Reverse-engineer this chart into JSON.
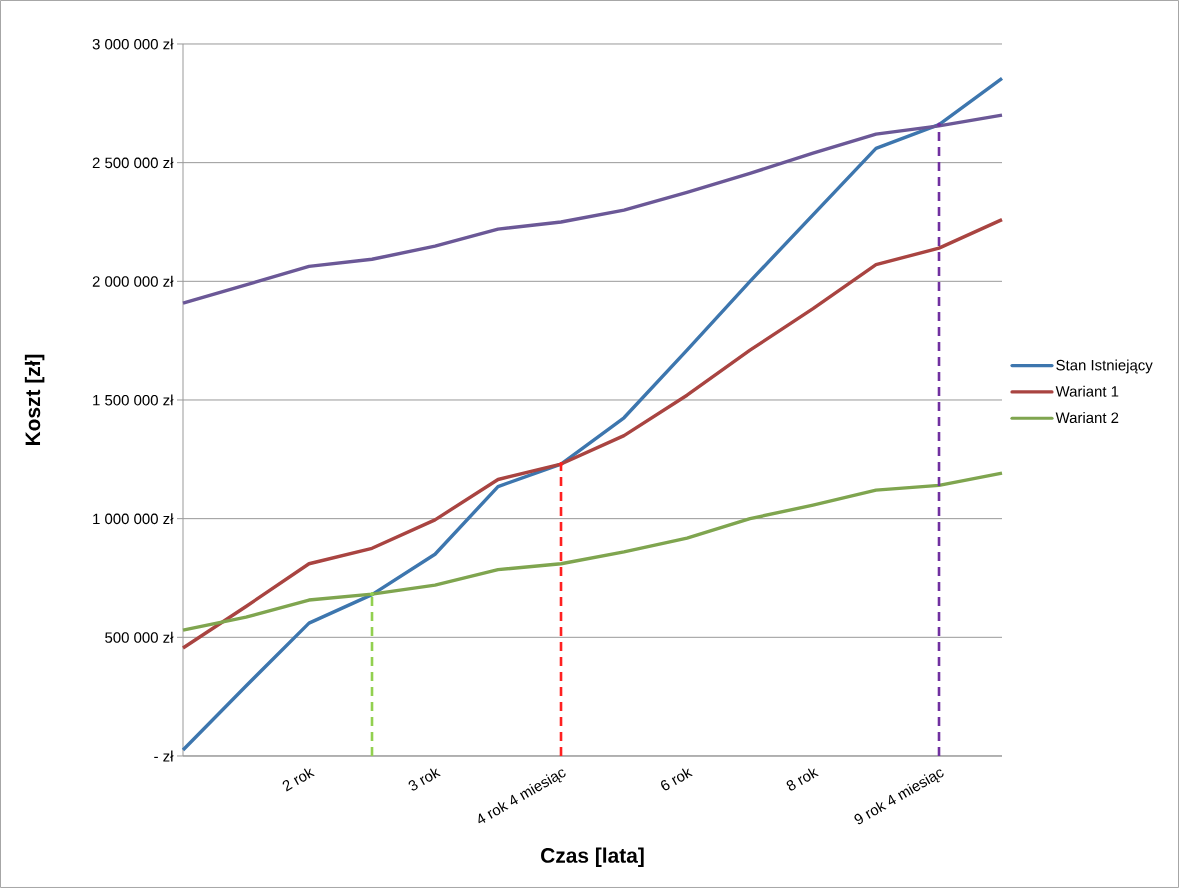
{
  "chart_data": {
    "type": "line",
    "xlabel": "Czas [lata]",
    "ylabel": "Koszt [zł]",
    "categories": [
      null,
      null,
      "2 rok",
      null,
      "3 rok",
      null,
      "4 rok 4 miesiąc",
      null,
      "6 rok",
      null,
      "8 rok",
      null,
      "9 rok 4 miesiąc",
      null
    ],
    "ylim": [
      0,
      3000000
    ],
    "yticks": [
      {
        "value": 0,
        "label": "- zł"
      },
      {
        "value": 500000,
        "label": "500 000 zł"
      },
      {
        "value": 1000000,
        "label": "1 000 000 zł"
      },
      {
        "value": 1500000,
        "label": "1 500 000 zł"
      },
      {
        "value": 2000000,
        "label": "2 000 000 zł"
      },
      {
        "value": 2500000,
        "label": "2 500 000 zł"
      },
      {
        "value": 3000000,
        "label": "3 000 000 zł"
      }
    ],
    "grid": "y",
    "legend": "right",
    "line_style": "solid",
    "marker": "none",
    "series": [
      {
        "name": "Stan Istniejący",
        "color": "#3d76ae",
        "values": [
          25000,
          295000,
          560000,
          680000,
          850000,
          1135000,
          1230000,
          1425000,
          1710000,
          2000000,
          2280000,
          2560000,
          2660000,
          2855000
        ]
      },
      {
        "name": "Wariant 1",
        "color": "#a94441",
        "values": [
          455000,
          630000,
          810000,
          875000,
          995000,
          1165000,
          1230000,
          1350000,
          1520000,
          1710000,
          1885000,
          2070000,
          2140000,
          2260000
        ]
      },
      {
        "name": "Wariant 2",
        "color": "#7fa54f",
        "values": [
          530000,
          585000,
          657000,
          682000,
          720000,
          785000,
          810000,
          860000,
          918000,
          1000000,
          1057000,
          1120000,
          1140000,
          1192000
        ]
      },
      {
        "color": "#6b5897",
        "values": [
          1908000,
          1985000,
          2063000,
          2093000,
          2148000,
          2220000,
          2250000,
          2300000,
          2375000,
          2455000,
          2540000,
          2620000,
          2655000,
          2700000
        ]
      },
      {
        "type": "scatter",
        "marker": "circle",
        "color": "#92d050",
        "line_style": "dashed",
        "values": [
          null,
          null,
          null,
          682000,
          null,
          null,
          null,
          null,
          null,
          null,
          null,
          null,
          null,
          null
        ],
        "errors": [
          null,
          null,
          null,
          [
            0,
            682000
          ],
          null,
          null,
          null,
          null,
          null,
          null,
          null,
          null,
          null,
          null
        ]
      },
      {
        "type": "scatter",
        "marker": "circle",
        "color": "#ff2020",
        "line_style": "dashed",
        "values": [
          null,
          null,
          null,
          null,
          null,
          null,
          1230000,
          null,
          null,
          null,
          null,
          null,
          null,
          null
        ],
        "errors": [
          null,
          null,
          null,
          null,
          null,
          null,
          [
            0,
            1230000
          ],
          null,
          null,
          null,
          null,
          null,
          null,
          null
        ]
      },
      {
        "type": "scatter",
        "marker": "circle",
        "color": "#7030a0",
        "line_style": "dashed",
        "values": [
          null,
          null,
          null,
          null,
          null,
          null,
          null,
          null,
          null,
          null,
          null,
          null,
          2660000,
          null
        ],
        "errors": [
          null,
          null,
          null,
          null,
          null,
          null,
          null,
          null,
          null,
          null,
          null,
          null,
          [
            0,
            2660000
          ],
          null
        ]
      }
    ]
  }
}
